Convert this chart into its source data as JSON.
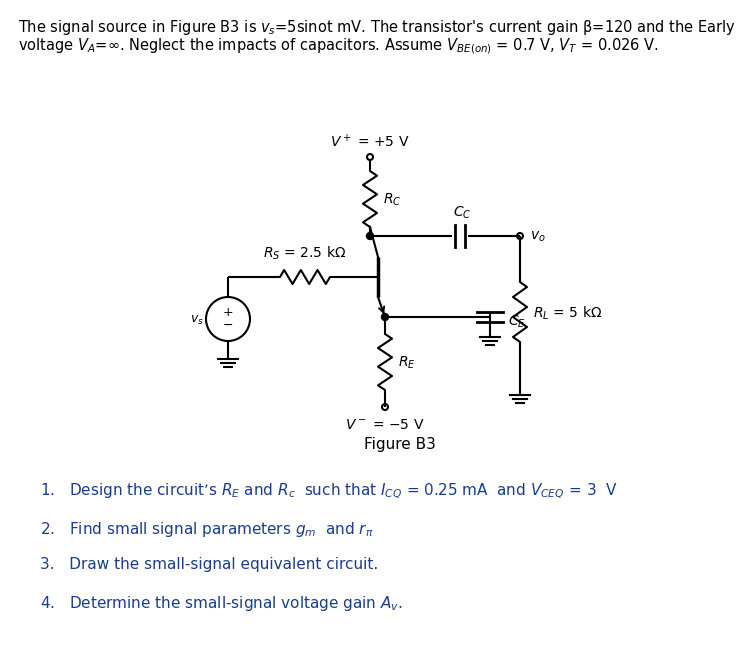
{
  "title_line1": "The signal source in Figure B3 is $v_s$=5sinot mV. The transistor's current gain β=120 and the Early",
  "title_line2": "voltage $V_A$=∞. Neglect the impacts of capacitors. Assume $V_{BE(on)}$ = 0.7 V, $V_T$ = 0.026 V.",
  "fig_label": "Figure B3",
  "vplus_label": "$V^+$ = +5 V",
  "vminus_label": "$V^-$ = −5 V",
  "rc_label": "$R_C$",
  "re_label": "$R_E$",
  "rs_label": "$R_S$ = 2.5 kΩ",
  "rl_label": "$R_L$ = 5 kΩ",
  "cc_label": "$C_C$",
  "ce_label": "$C_E$",
  "vo_label": "$v_o$",
  "vs_label": "$v_s$",
  "q1_text": "1.   Design the circuit’s $R_E$ and $R_c$  such that $I_{CQ}$ = 0.25 mA  and $V_{CEQ}$ = 3  V",
  "q2_text": "2.   Find small signal parameters $g_m$  and $r_π$",
  "q3_text": "3.   Draw the small-signal equivalent circuit.",
  "q4_text": "4.   Determine the small-signal voltage gain $A_v$.",
  "bg_color": "#ffffff",
  "line_color": "#000000",
  "text_color": "#000000",
  "text_color_blue": "#1a3c8c",
  "fontsize_title": 10.5,
  "fontsize_circuit": 10,
  "fontsize_question": 11
}
